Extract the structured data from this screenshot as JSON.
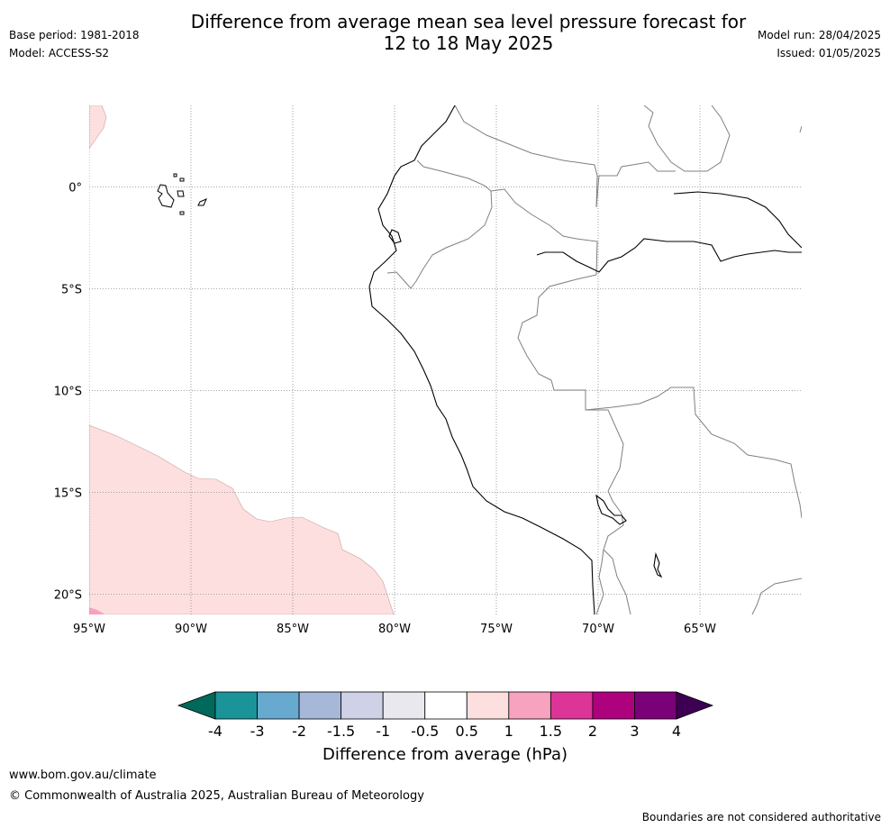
{
  "title_line1": "Difference from average mean sea level pressure forecast for",
  "title_line2": "12 to 18 May 2025",
  "meta_left": {
    "base_period": "Base period: 1981-2018",
    "model": "Model: ACCESS-S2"
  },
  "meta_right": {
    "model_run": "Model run: 28/04/2025",
    "issued": "Issued: 01/05/2025"
  },
  "map": {
    "lon_labels": [
      "95°W",
      "90°W",
      "85°W",
      "80°W",
      "75°W",
      "70°W",
      "65°W"
    ],
    "lat_labels": [
      "0°",
      "5°S",
      "10°S",
      "15°S",
      "20°S"
    ],
    "lon_values": [
      -95,
      -90,
      -85,
      -80,
      -75,
      -70,
      -65
    ],
    "lat_values": [
      0,
      -5,
      -10,
      -15,
      -20
    ],
    "extent": {
      "lon_min": -95,
      "lon_max": -60,
      "lat_min": -21,
      "lat_max": 4
    },
    "anomaly_regions": [
      {
        "name": "southwest-positive-anomaly",
        "category": "0.5 to 1",
        "color": "#fddfdf"
      },
      {
        "name": "northwest-positive-anomaly",
        "category": "0.5 to 1",
        "color": "#fddfdf"
      },
      {
        "name": "southwest-corner-anomaly",
        "category": "1 to 1.5",
        "color": "#f7a2bf"
      }
    ]
  },
  "colorbar": {
    "title": "Difference from average (hPa)",
    "labels": [
      "-4",
      "-3",
      "-2",
      "-1.5",
      "-1",
      "-0.5",
      "0.5",
      "1",
      "1.5",
      "2",
      "3",
      "4"
    ],
    "under_color": "#00695c",
    "over_color": "#3d0053",
    "colors": [
      "#1a9399",
      "#67a9cf",
      "#a6b7d8",
      "#cfd1e6",
      "#e8e8ee",
      "#ffffff",
      "#fddfdf",
      "#f7a2bf",
      "#dd3497",
      "#ae017e",
      "#7a0177"
    ]
  },
  "footer": {
    "url": "www.bom.gov.au/climate",
    "copyright": "© Commonwealth of Australia 2025, Australian Bureau of Meteorology",
    "disclaimer": "Boundaries are not considered authoritative"
  }
}
